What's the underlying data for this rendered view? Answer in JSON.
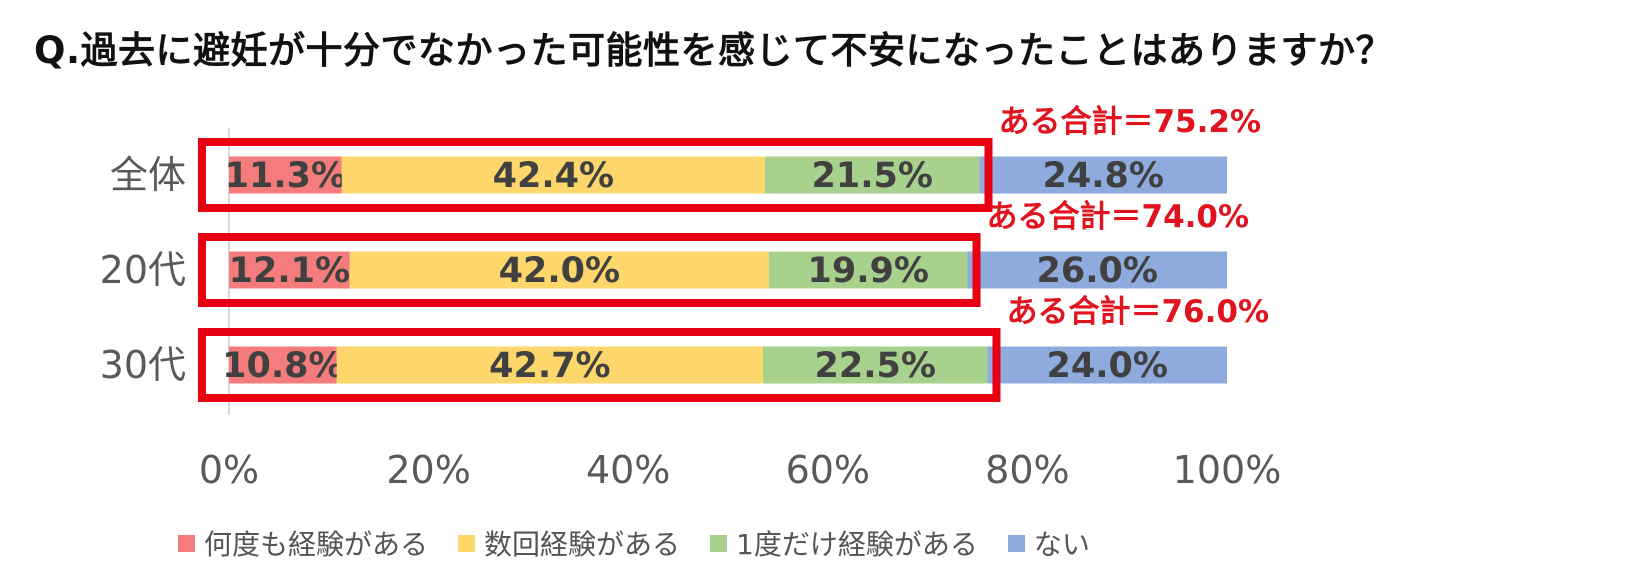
{
  "chart_data": {
    "type": "bar",
    "orientation": "horizontal",
    "stacked": true,
    "title": "Q.過去に避妊が十分でなかった可能性を感じて不安になったことはありますか？",
    "categories": [
      "全体",
      "20代",
      "30代"
    ],
    "series": [
      {
        "name": "何度も経験がある",
        "color": "#F47C7C",
        "values": [
          11.3,
          12.1,
          10.8
        ]
      },
      {
        "name": "数回経験がある",
        "color": "#FDD66C",
        "values": [
          42.4,
          42.0,
          42.7
        ]
      },
      {
        "name": "1度だけ経験がある",
        "color": "#A9D18E",
        "values": [
          21.5,
          19.9,
          22.5
        ]
      },
      {
        "name": "ない",
        "color": "#8FAADC",
        "values": [
          24.8,
          26.0,
          24.0
        ]
      }
    ],
    "value_labels": [
      [
        "11.3%",
        "42.4%",
        "21.5%",
        "24.8%"
      ],
      [
        "12.1%",
        "42.0%",
        "19.9%",
        "26.0%"
      ],
      [
        "10.8%",
        "42.7%",
        "22.5%",
        "24.0%"
      ]
    ],
    "annotations": [
      "ある合計＝75.2%",
      "ある合計＝74.0%",
      "ある合計＝76.0%"
    ],
    "annotation_totals": [
      75.2,
      74.0,
      76.0
    ],
    "x_ticks": [
      "0%",
      "20%",
      "40%",
      "60%",
      "80%",
      "100%"
    ],
    "xlim": [
      0,
      100
    ],
    "legend_position": "bottom",
    "grid": false,
    "colors": {
      "highlight": "#E60012",
      "annotation": "#E0141E",
      "label": "#404040",
      "axis": "#595959"
    }
  }
}
